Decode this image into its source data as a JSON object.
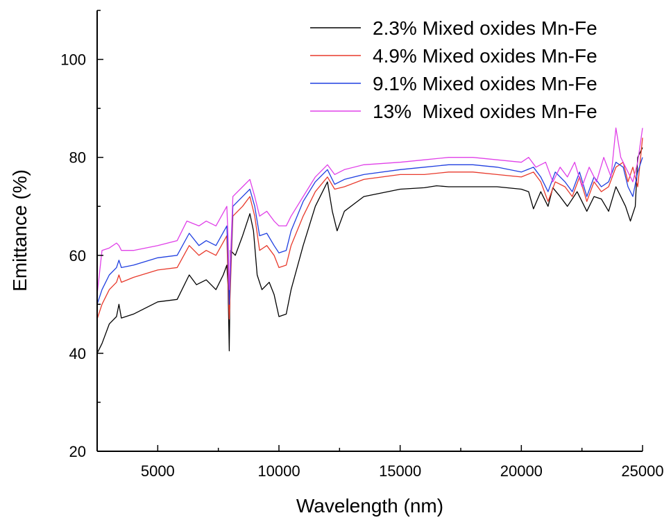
{
  "chart_data": {
    "type": "line",
    "xlabel": "Wavelength (nm)",
    "ylabel": "Emittance (%)",
    "xlim": [
      2500,
      25000
    ],
    "ylim": [
      20,
      110
    ],
    "x_ticks": [
      5000,
      10000,
      15000,
      20000,
      25000
    ],
    "y_ticks": [
      20,
      40,
      60,
      80,
      100
    ],
    "grid": false,
    "legend_position": "top-right",
    "series": [
      {
        "name": "2.3% Mixed oxides Mn-Fe",
        "color": "#000000",
        "points": [
          [
            2500,
            40
          ],
          [
            2700,
            42
          ],
          [
            3000,
            46
          ],
          [
            3300,
            47.5
          ],
          [
            3400,
            50
          ],
          [
            3500,
            47.2
          ],
          [
            4000,
            48
          ],
          [
            5000,
            50.5
          ],
          [
            5800,
            51
          ],
          [
            6300,
            56
          ],
          [
            6600,
            54
          ],
          [
            7000,
            55
          ],
          [
            7400,
            53
          ],
          [
            7700,
            56
          ],
          [
            7850,
            58
          ],
          [
            7900,
            54
          ],
          [
            7950,
            40.5
          ],
          [
            8000,
            61
          ],
          [
            8200,
            60
          ],
          [
            8500,
            64
          ],
          [
            8800,
            68.5
          ],
          [
            8950,
            65
          ],
          [
            9100,
            56
          ],
          [
            9300,
            53
          ],
          [
            9600,
            54.5
          ],
          [
            9800,
            52
          ],
          [
            10000,
            47.5
          ],
          [
            10300,
            48
          ],
          [
            10500,
            53
          ],
          [
            11000,
            62
          ],
          [
            11500,
            70
          ],
          [
            12000,
            75
          ],
          [
            12200,
            69
          ],
          [
            12400,
            65
          ],
          [
            12700,
            69
          ],
          [
            13500,
            72
          ],
          [
            15000,
            73.5
          ],
          [
            16000,
            73.8
          ],
          [
            16500,
            74.2
          ],
          [
            17000,
            74
          ],
          [
            18000,
            74
          ],
          [
            19000,
            74
          ],
          [
            20000,
            73.5
          ],
          [
            20300,
            73
          ],
          [
            20500,
            69.5
          ],
          [
            20800,
            73
          ],
          [
            21100,
            70
          ],
          [
            21300,
            73.8
          ],
          [
            21600,
            72
          ],
          [
            21900,
            70
          ],
          [
            22300,
            73
          ],
          [
            22700,
            69
          ],
          [
            23000,
            72
          ],
          [
            23300,
            71.5
          ],
          [
            23600,
            69
          ],
          [
            23900,
            74
          ],
          [
            24100,
            72
          ],
          [
            24300,
            70
          ],
          [
            24500,
            67
          ],
          [
            24700,
            70
          ],
          [
            24800,
            80
          ],
          [
            25000,
            82
          ]
        ]
      },
      {
        "name": "4.9% Mixed oxides Mn-Fe",
        "color": "#e8392b",
        "points": [
          [
            2500,
            47
          ],
          [
            2700,
            50
          ],
          [
            3000,
            53
          ],
          [
            3300,
            54.5
          ],
          [
            3400,
            56
          ],
          [
            3500,
            54.5
          ],
          [
            4000,
            55.5
          ],
          [
            5000,
            57
          ],
          [
            5800,
            57.5
          ],
          [
            6300,
            62
          ],
          [
            6700,
            60
          ],
          [
            7000,
            61
          ],
          [
            7400,
            60
          ],
          [
            7850,
            64
          ],
          [
            7900,
            55
          ],
          [
            7950,
            47
          ],
          [
            8100,
            68
          ],
          [
            8500,
            70
          ],
          [
            8800,
            72
          ],
          [
            9000,
            68
          ],
          [
            9200,
            61
          ],
          [
            9500,
            62
          ],
          [
            9800,
            60
          ],
          [
            10000,
            57.5
          ],
          [
            10300,
            58
          ],
          [
            10500,
            62
          ],
          [
            11000,
            68
          ],
          [
            11500,
            73
          ],
          [
            12000,
            76
          ],
          [
            12300,
            73.5
          ],
          [
            12700,
            74
          ],
          [
            13500,
            75.5
          ],
          [
            15000,
            76.5
          ],
          [
            16000,
            76.5
          ],
          [
            17000,
            77
          ],
          [
            18000,
            77
          ],
          [
            19000,
            76.5
          ],
          [
            20000,
            76
          ],
          [
            20500,
            77
          ],
          [
            20800,
            75
          ],
          [
            21100,
            71
          ],
          [
            21400,
            75
          ],
          [
            21800,
            74
          ],
          [
            22100,
            72
          ],
          [
            22400,
            76
          ],
          [
            22700,
            71
          ],
          [
            23000,
            75
          ],
          [
            23300,
            73
          ],
          [
            23600,
            74
          ],
          [
            23900,
            78
          ],
          [
            24200,
            79
          ],
          [
            24400,
            75
          ],
          [
            24600,
            78
          ],
          [
            24800,
            74
          ],
          [
            25000,
            84
          ]
        ]
      },
      {
        "name": "9.1% Mixed oxides Mn-Fe",
        "color": "#1f3fe0",
        "points": [
          [
            2500,
            50
          ],
          [
            2700,
            53
          ],
          [
            3000,
            56
          ],
          [
            3300,
            57.5
          ],
          [
            3400,
            59
          ],
          [
            3500,
            57.5
          ],
          [
            4000,
            58
          ],
          [
            5000,
            59.5
          ],
          [
            5800,
            60
          ],
          [
            6300,
            64.5
          ],
          [
            6700,
            62
          ],
          [
            7000,
            63
          ],
          [
            7400,
            62
          ],
          [
            7850,
            66
          ],
          [
            7900,
            60
          ],
          [
            7950,
            50
          ],
          [
            8100,
            70
          ],
          [
            8500,
            72
          ],
          [
            8800,
            73.5
          ],
          [
            9000,
            70
          ],
          [
            9200,
            64
          ],
          [
            9500,
            64.5
          ],
          [
            9800,
            62
          ],
          [
            10000,
            60.5
          ],
          [
            10300,
            61
          ],
          [
            10500,
            65
          ],
          [
            11000,
            71
          ],
          [
            11500,
            75
          ],
          [
            12000,
            77.5
          ],
          [
            12300,
            74.5
          ],
          [
            12700,
            75.5
          ],
          [
            13500,
            76.5
          ],
          [
            15000,
            77.5
          ],
          [
            16000,
            78
          ],
          [
            17000,
            78.5
          ],
          [
            18000,
            78.5
          ],
          [
            19000,
            78
          ],
          [
            20000,
            77
          ],
          [
            20500,
            78
          ],
          [
            20800,
            76
          ],
          [
            21100,
            73
          ],
          [
            21400,
            77
          ],
          [
            21800,
            75
          ],
          [
            22100,
            73
          ],
          [
            22400,
            77
          ],
          [
            22700,
            72
          ],
          [
            23000,
            76
          ],
          [
            23300,
            74
          ],
          [
            23600,
            75
          ],
          [
            23900,
            79
          ],
          [
            24200,
            78
          ],
          [
            24400,
            74
          ],
          [
            24600,
            72
          ],
          [
            24800,
            77
          ],
          [
            25000,
            80
          ]
        ]
      },
      {
        "name": "13%  Mixed oxides Mn-Fe",
        "color": "#e040e8",
        "points": [
          [
            2500,
            52
          ],
          [
            2700,
            61
          ],
          [
            3000,
            61.5
          ],
          [
            3300,
            62.5
          ],
          [
            3400,
            62
          ],
          [
            3500,
            61
          ],
          [
            4000,
            61
          ],
          [
            5000,
            62
          ],
          [
            5800,
            63
          ],
          [
            6200,
            67
          ],
          [
            6700,
            66
          ],
          [
            7000,
            67
          ],
          [
            7400,
            66
          ],
          [
            7850,
            70
          ],
          [
            7900,
            64
          ],
          [
            7950,
            53
          ],
          [
            8100,
            72
          ],
          [
            8500,
            74
          ],
          [
            8800,
            75.5
          ],
          [
            9000,
            72
          ],
          [
            9200,
            68
          ],
          [
            9500,
            69
          ],
          [
            9800,
            67
          ],
          [
            10000,
            66
          ],
          [
            10300,
            66
          ],
          [
            10500,
            68
          ],
          [
            11000,
            72
          ],
          [
            11500,
            76
          ],
          [
            12000,
            78.5
          ],
          [
            12300,
            76.5
          ],
          [
            12700,
            77.5
          ],
          [
            13500,
            78.5
          ],
          [
            15000,
            79
          ],
          [
            16000,
            79.5
          ],
          [
            17000,
            80
          ],
          [
            18000,
            80
          ],
          [
            19000,
            79.5
          ],
          [
            20000,
            79
          ],
          [
            20300,
            80
          ],
          [
            20600,
            78
          ],
          [
            21000,
            79
          ],
          [
            21300,
            75
          ],
          [
            21600,
            78
          ],
          [
            21900,
            76
          ],
          [
            22200,
            79
          ],
          [
            22500,
            74
          ],
          [
            22800,
            78
          ],
          [
            23100,
            75
          ],
          [
            23400,
            80
          ],
          [
            23700,
            76
          ],
          [
            23900,
            86
          ],
          [
            24100,
            80
          ],
          [
            24400,
            77
          ],
          [
            24600,
            75
          ],
          [
            24800,
            79
          ],
          [
            25000,
            86
          ]
        ]
      }
    ]
  }
}
